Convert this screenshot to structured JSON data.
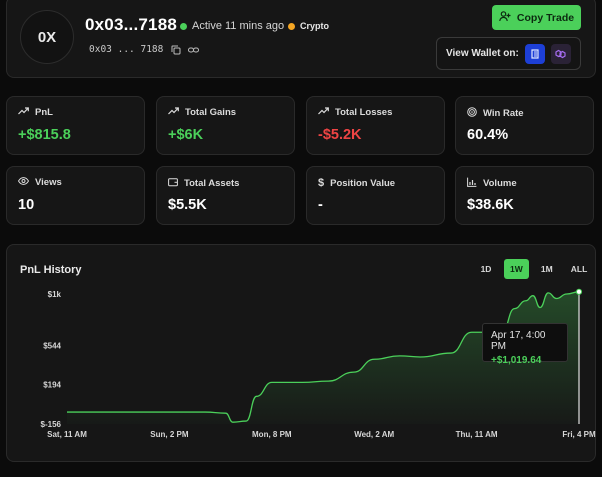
{
  "header": {
    "avatar_initials": "0X",
    "wallet_title": "0x03...7188",
    "status_text": "Active 11 mins ago",
    "status_color": "#4bd05a",
    "tag_label": "Crypto",
    "tag_color": "#f5a623",
    "address": "0x03 ... 7188",
    "copy_trade_label": "Copy Trade",
    "view_wallet_label": "View Wallet on:",
    "explorer_icons": [
      "chain-explorer-icon",
      "polygon-icon"
    ]
  },
  "stats": [
    {
      "label": "PnL",
      "value": "+$815.8",
      "icon": "trend-up-icon",
      "tone": "pos"
    },
    {
      "label": "Total Gains",
      "value": "+$6K",
      "icon": "trend-up-icon",
      "tone": "pos"
    },
    {
      "label": "Total Losses",
      "value": "-$5.2K",
      "icon": "trend-up-icon",
      "tone": "neg"
    },
    {
      "label": "Win Rate",
      "value": "60.4%",
      "icon": "target-icon",
      "tone": "plain"
    },
    {
      "label": "Views",
      "value": "10",
      "icon": "eye-icon",
      "tone": "plain"
    },
    {
      "label": "Total Assets",
      "value": "$5.5K",
      "icon": "wallet-icon",
      "tone": "plain"
    },
    {
      "label": "Position Value",
      "value": "-",
      "icon": "dollar-icon",
      "tone": "plain"
    },
    {
      "label": "Volume",
      "value": "$38.6K",
      "icon": "bar-chart-icon",
      "tone": "plain"
    }
  ],
  "pnl_history": {
    "title": "PnL History",
    "ranges": [
      "1D",
      "1W",
      "1M",
      "ALL"
    ],
    "active_range": "1W",
    "tooltip": {
      "date": "Apr 17, 4:00 PM",
      "value": "+$1,019.64"
    }
  },
  "chart_data": {
    "type": "area",
    "title": "PnL History",
    "xlabel": "",
    "ylabel": "",
    "x_ticks": [
      "Sat, 11 AM",
      "Sun, 2 PM",
      "Mon, 8 PM",
      "Wed, 2 AM",
      "Thu, 11 AM",
      "Fri, 4 PM"
    ],
    "y_ticks": [
      "$1k",
      "$544",
      "$194",
      "$-156"
    ],
    "ylim": [
      -156,
      1000
    ],
    "line_color": "#4bd05a",
    "x": [
      0,
      0.5,
      1.0,
      1.2,
      1.35,
      1.55,
      1.62,
      1.75,
      1.85,
      2.0,
      2.3,
      2.55,
      2.8,
      3.0,
      3.25,
      3.45,
      3.75,
      3.95,
      4.1,
      4.25,
      4.37,
      4.48,
      4.55,
      4.62,
      4.7,
      4.78,
      4.88,
      5.0
    ],
    "y": [
      -50,
      -50,
      -50,
      -50,
      -50,
      -60,
      -140,
      -130,
      90,
      214,
      214,
      225,
      305,
      420,
      450,
      440,
      475,
      660,
      660,
      664,
      870,
      940,
      985,
      880,
      1010,
      960,
      1000,
      1019.64
    ]
  }
}
